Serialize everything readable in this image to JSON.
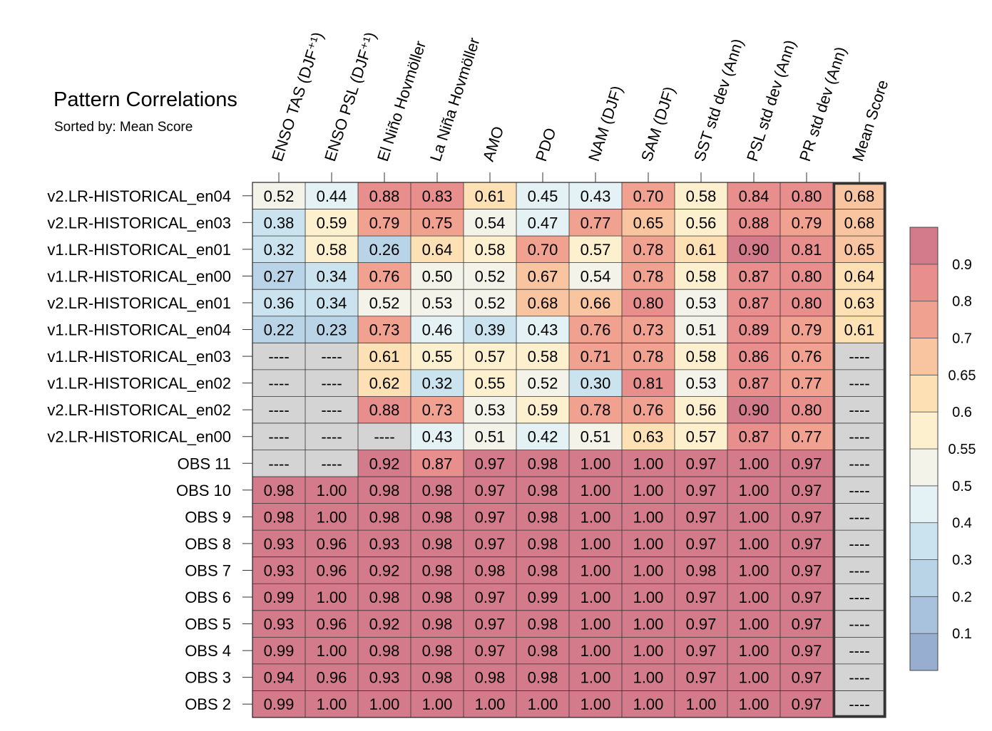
{
  "chart_data": {
    "type": "heatmap",
    "title": "Pattern Correlations",
    "subtitle": "Sorted by: Mean Score",
    "missing_label": "----",
    "columns": [
      "ENSO TAS (DJF⁺¹)",
      "ENSO PSL (DJF⁺¹)",
      "El Niño Hovmöller",
      "La Niña Hovmöller",
      "AMO",
      "PDO",
      "NAM (DJF)",
      "SAM (DJF)",
      "SST std dev (Ann)",
      "PSL std dev (Ann)",
      "PR std dev (Ann)",
      "Mean Score"
    ],
    "rows": [
      "v2.LR-HISTORICAL_en04",
      "v2.LR-HISTORICAL_en03",
      "v1.LR-HISTORICAL_en01",
      "v1.LR-HISTORICAL_en00",
      "v2.LR-HISTORICAL_en01",
      "v1.LR-HISTORICAL_en04",
      "v1.LR-HISTORICAL_en03",
      "v1.LR-HISTORICAL_en02",
      "v2.LR-HISTORICAL_en02",
      "v2.LR-HISTORICAL_en00",
      "OBS 11",
      "OBS 10",
      "OBS 9",
      "OBS 8",
      "OBS 7",
      "OBS 6",
      "OBS 5",
      "OBS 4",
      "OBS 3",
      "OBS 2"
    ],
    "values": [
      [
        0.52,
        0.44,
        0.88,
        0.83,
        0.61,
        0.45,
        0.43,
        0.7,
        0.58,
        0.84,
        0.8,
        0.68
      ],
      [
        0.38,
        0.59,
        0.79,
        0.75,
        0.54,
        0.47,
        0.77,
        0.65,
        0.56,
        0.88,
        0.79,
        0.68
      ],
      [
        0.32,
        0.58,
        0.26,
        0.64,
        0.58,
        0.7,
        0.57,
        0.78,
        0.61,
        0.9,
        0.81,
        0.65
      ],
      [
        0.27,
        0.34,
        0.76,
        0.5,
        0.52,
        0.67,
        0.54,
        0.78,
        0.58,
        0.87,
        0.8,
        0.64
      ],
      [
        0.36,
        0.34,
        0.52,
        0.53,
        0.52,
        0.68,
        0.66,
        0.8,
        0.53,
        0.87,
        0.8,
        0.63
      ],
      [
        0.22,
        0.23,
        0.73,
        0.46,
        0.39,
        0.43,
        0.76,
        0.73,
        0.51,
        0.89,
        0.79,
        0.61
      ],
      [
        null,
        null,
        0.61,
        0.55,
        0.57,
        0.58,
        0.71,
        0.78,
        0.58,
        0.86,
        0.76,
        null
      ],
      [
        null,
        null,
        0.62,
        0.32,
        0.55,
        0.52,
        0.3,
        0.81,
        0.53,
        0.87,
        0.77,
        null
      ],
      [
        null,
        null,
        0.88,
        0.73,
        0.53,
        0.59,
        0.78,
        0.76,
        0.56,
        0.9,
        0.8,
        null
      ],
      [
        null,
        null,
        null,
        0.43,
        0.51,
        0.42,
        0.51,
        0.63,
        0.57,
        0.87,
        0.77,
        null
      ],
      [
        null,
        null,
        0.92,
        0.87,
        0.97,
        0.98,
        1.0,
        1.0,
        0.97,
        1.0,
        0.97,
        null
      ],
      [
        0.98,
        1.0,
        0.98,
        0.98,
        0.97,
        0.98,
        1.0,
        1.0,
        0.97,
        1.0,
        0.97,
        null
      ],
      [
        0.98,
        1.0,
        0.98,
        0.98,
        0.97,
        0.98,
        1.0,
        1.0,
        0.97,
        1.0,
        0.97,
        null
      ],
      [
        0.93,
        0.96,
        0.93,
        0.98,
        0.97,
        0.98,
        1.0,
        1.0,
        0.97,
        1.0,
        0.97,
        null
      ],
      [
        0.93,
        0.96,
        0.92,
        0.98,
        0.98,
        0.98,
        1.0,
        1.0,
        0.98,
        1.0,
        0.97,
        null
      ],
      [
        0.99,
        1.0,
        0.98,
        0.98,
        0.97,
        0.99,
        1.0,
        1.0,
        0.97,
        1.0,
        0.97,
        null
      ],
      [
        0.93,
        0.96,
        0.92,
        0.98,
        0.97,
        0.98,
        1.0,
        1.0,
        0.97,
        1.0,
        0.97,
        null
      ],
      [
        0.99,
        1.0,
        0.98,
        0.98,
        0.97,
        0.98,
        1.0,
        1.0,
        0.97,
        1.0,
        0.97,
        null
      ],
      [
        0.94,
        0.96,
        0.93,
        0.98,
        0.98,
        0.98,
        1.0,
        1.0,
        0.97,
        1.0,
        0.97,
        null
      ],
      [
        0.99,
        1.0,
        1.0,
        1.0,
        1.0,
        1.0,
        1.0,
        1.0,
        1.0,
        1.0,
        0.97,
        null
      ]
    ],
    "colorbar": {
      "levels": [
        0.1,
        0.2,
        0.3,
        0.4,
        0.5,
        0.55,
        0.6,
        0.65,
        0.7,
        0.8,
        0.9
      ],
      "labels": [
        "0.1",
        "0.2",
        "0.3",
        "0.4",
        "0.5",
        "0.55",
        "0.6",
        "0.65",
        "0.7",
        "0.8",
        "0.9"
      ],
      "colors": [
        "#98aed1",
        "#a8c1dc",
        "#b8d4e6",
        "#cbe3ee",
        "#e4f1f5",
        "#f3f3ea",
        "#fdf0cf",
        "#fde0b3",
        "#f9c5a0",
        "#f1a190",
        "#e88f8d",
        "#d37b8b"
      ]
    },
    "missing_color": "#d4d4d4",
    "highlighted_column": "Mean Score",
    "number_format": "2 decimals"
  }
}
